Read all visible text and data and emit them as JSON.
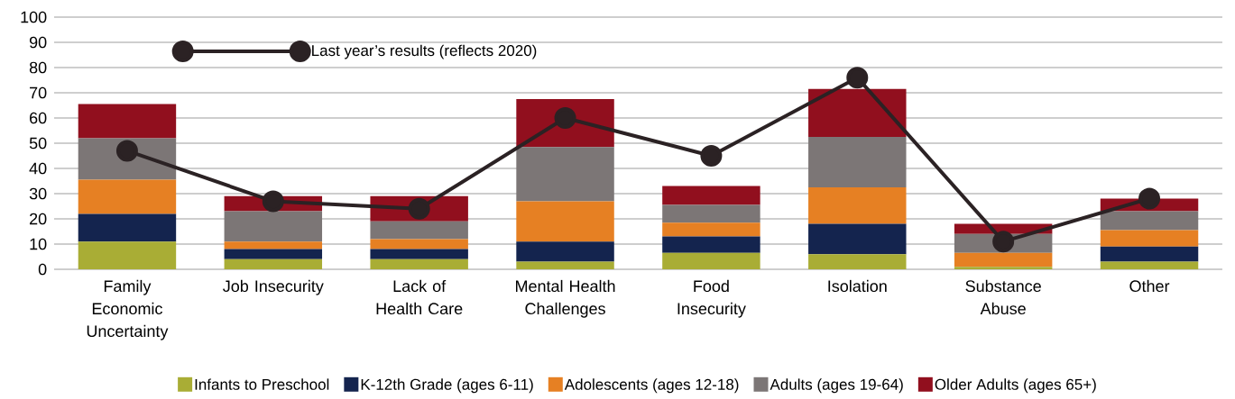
{
  "chart_data": {
    "type": "bar",
    "stacked": true,
    "categories": [
      "Family Economic Uncertainty",
      "Job Insecurity",
      "Lack of Health Care",
      "Mental Health Challenges",
      "Food Insecurity",
      "Isolation",
      "Substance Abuse",
      "Other"
    ],
    "series": [
      {
        "name": "Infants to Preschool",
        "color": "#a9ad35",
        "values": [
          11,
          4,
          4,
          3,
          6.5,
          6,
          1,
          3
        ]
      },
      {
        "name": "K-12th Grade (ages 6-11)",
        "color": "#14244e",
        "values": [
          11,
          4,
          4,
          8,
          6.5,
          12,
          0,
          6
        ]
      },
      {
        "name": "Adolescents (ages 12-18)",
        "color": "#e68023",
        "values": [
          13.5,
          3,
          4,
          16,
          5.5,
          14.5,
          5.5,
          6.5
        ]
      },
      {
        "name": "Adults (ages 19-64)",
        "color": "#7c7676",
        "values": [
          16.5,
          12,
          7,
          21.5,
          7,
          20,
          7.5,
          7.5
        ]
      },
      {
        "name": "Older Adults (ages 65+)",
        "color": "#910f1e",
        "values": [
          13.5,
          6,
          10,
          19,
          7.5,
          19,
          4,
          5
        ]
      },
      {
        "name": "Last year’s results (reflects 2020)",
        "type": "line",
        "color": "#2b2224",
        "values": [
          47,
          27,
          24,
          60,
          45,
          76,
          11,
          28
        ]
      }
    ],
    "ylim": [
      0,
      100
    ],
    "yticks": [
      0,
      10,
      20,
      30,
      40,
      50,
      60,
      70,
      80,
      90,
      100
    ],
    "grid": "y",
    "legend": "bottom",
    "marker": "circle"
  }
}
